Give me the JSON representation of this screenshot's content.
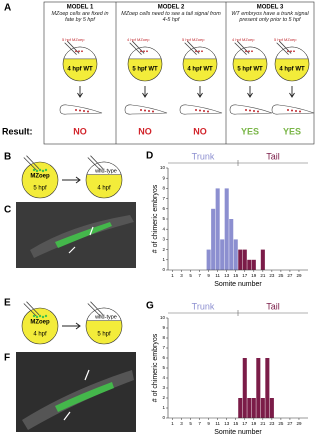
{
  "panel_a": {
    "label": "A",
    "result_label": "Result:",
    "models": [
      {
        "title": "MODEL 1",
        "description": "MZoep cells are fixed in fate by 5 hpf",
        "embryos": [
          {
            "donor": "5 hpf MZoep",
            "host": "4 hpf WT",
            "result": "NO",
            "result_color": "#d2232a"
          }
        ]
      },
      {
        "title": "MODEL 2",
        "description": "MZoep cells need to see a tail signal from 4-5 hpf",
        "embryos": [
          {
            "donor": "4 hpf MZoep",
            "host": "5 hpf WT",
            "result": "NO",
            "result_color": "#d2232a"
          },
          {
            "donor": "5 hpf MZoep",
            "host": "4 hpf WT",
            "result": "NO",
            "result_color": "#d2232a"
          }
        ]
      },
      {
        "title": "MODEL 3",
        "description": "WT embryos have a trunk signal present only prior to 5 hpf",
        "embryos": [
          {
            "donor": "4 hpf MZoep",
            "host": "5 hpf WT",
            "result": "YES",
            "result_color": "#7ab648"
          },
          {
            "donor": "5 hpf MZoep",
            "host": "4 hpf WT",
            "result": "YES",
            "result_color": "#7ab648"
          }
        ]
      }
    ]
  },
  "panel_b": {
    "label": "B",
    "donor": "MZoep",
    "donor_stage": "5 hpf",
    "host": "wild-type",
    "host_stage": "4 hpf"
  },
  "panel_c": {
    "label": "C"
  },
  "panel_e": {
    "label": "E",
    "donor": "MZoep",
    "donor_stage": "4 hpf",
    "host": "wild-type",
    "host_stage": "5 hpf"
  },
  "panel_f": {
    "label": "F"
  },
  "chart_data": [
    {
      "type": "bar",
      "label": "D",
      "xlabel": "Somite number",
      "ylabel": "# of chimeric embryos",
      "xlim": [
        0,
        31
      ],
      "xticks": [
        1,
        3,
        5,
        7,
        9,
        11,
        13,
        15,
        17,
        19,
        21,
        23,
        25,
        27,
        29
      ],
      "ylim": [
        0,
        10
      ],
      "yticks": [
        0,
        1,
        2,
        3,
        4,
        5,
        6,
        7,
        8,
        9,
        10
      ],
      "series": [
        {
          "name": "Trunk",
          "color": "#8c8fd0",
          "x": [
            9,
            10,
            11,
            12,
            13,
            14,
            15
          ],
          "values": [
            2,
            6,
            8,
            3,
            8,
            5,
            3
          ]
        },
        {
          "name": "Tail",
          "color": "#7b1c48",
          "x": [
            16,
            17,
            18,
            19,
            21
          ],
          "values": [
            2,
            2,
            1,
            1,
            2
          ]
        }
      ]
    },
    {
      "type": "bar",
      "label": "G",
      "xlabel": "Somite number",
      "ylabel": "# of chimeric embryos",
      "xlim": [
        0,
        31
      ],
      "xticks": [
        1,
        3,
        5,
        7,
        9,
        11,
        13,
        15,
        17,
        19,
        21,
        23,
        25,
        27,
        29
      ],
      "ylim": [
        0,
        10
      ],
      "yticks": [
        0,
        1,
        2,
        3,
        4,
        5,
        6,
        7,
        8,
        9,
        10
      ],
      "series": [
        {
          "name": "Trunk",
          "color": "#8c8fd0",
          "x": [],
          "values": []
        },
        {
          "name": "Tail",
          "color": "#7b1c48",
          "x": [
            16,
            17,
            18,
            19,
            20,
            21,
            22,
            23
          ],
          "values": [
            2,
            6,
            2,
            2,
            6,
            2,
            6,
            2
          ]
        }
      ]
    }
  ]
}
